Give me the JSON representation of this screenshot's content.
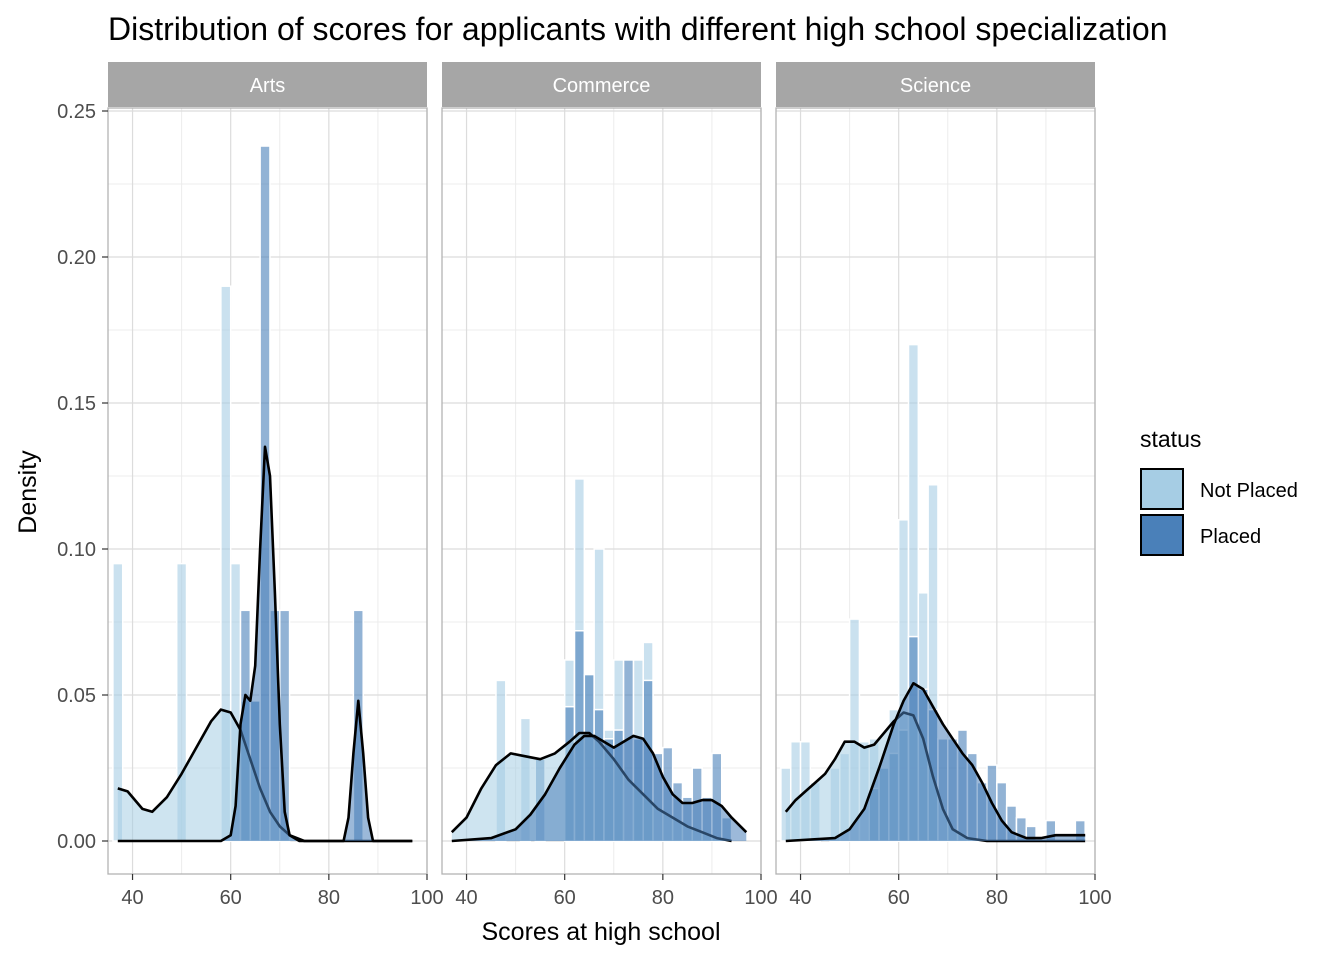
{
  "chart_data": {
    "type": "histogram-density-faceted",
    "title": "Distribution of scores for applicants with different high school specialization",
    "xlabel": "Scores at high school",
    "ylabel": "Density",
    "xlim": [
      35,
      100
    ],
    "ylim": [
      0,
      0.25
    ],
    "x_ticks": [
      40,
      60,
      80,
      100
    ],
    "x_tick_labels": [
      "40",
      "60",
      "80",
      "100"
    ],
    "y_ticks": [
      0,
      0.05,
      0.1,
      0.15,
      0.2,
      0.25
    ],
    "y_tick_labels": [
      "0.00",
      "0.05",
      "0.10",
      "0.15",
      "0.20",
      "0.25"
    ],
    "grid": true,
    "bin_width": 2,
    "legend": {
      "title": "status",
      "placement": "right",
      "entries": [
        {
          "label": "Not Placed",
          "color": "#a6cde4"
        },
        {
          "label": "Placed",
          "color": "#4a80b9"
        }
      ]
    },
    "colors": {
      "not_placed": "#a6cde4",
      "placed": "#4a80b9",
      "density_line": "#000000",
      "strip_bg": "#a6a6a6"
    },
    "facets": [
      {
        "name": "Arts",
        "histogram": {
          "not_placed": [
            [
              37,
              0.095
            ],
            [
              50,
              0.095
            ],
            [
              59,
              0.19
            ],
            [
              61,
              0.095
            ],
            [
              63,
              0.048
            ],
            [
              65,
              0.048
            ]
          ],
          "placed": [
            [
              63,
              0.079
            ],
            [
              65,
              0.048
            ],
            [
              67,
              0.238
            ],
            [
              69,
              0.079
            ],
            [
              71,
              0.079
            ],
            [
              86,
              0.079
            ]
          ]
        },
        "density": {
          "not_placed": [
            [
              37,
              0.018
            ],
            [
              39,
              0.017
            ],
            [
              42,
              0.011
            ],
            [
              44,
              0.01
            ],
            [
              47,
              0.015
            ],
            [
              50,
              0.023
            ],
            [
              53,
              0.032
            ],
            [
              56,
              0.041
            ],
            [
              58,
              0.045
            ],
            [
              60,
              0.044
            ],
            [
              62,
              0.038
            ],
            [
              64,
              0.028
            ],
            [
              66,
              0.018
            ],
            [
              68,
              0.01
            ],
            [
              70,
              0.005
            ],
            [
              72,
              0.002
            ],
            [
              75,
              0.0
            ],
            [
              97,
              0.0
            ]
          ],
          "placed": [
            [
              37,
              0.0
            ],
            [
              58,
              0.0
            ],
            [
              60,
              0.002
            ],
            [
              61,
              0.012
            ],
            [
              62,
              0.04
            ],
            [
              63,
              0.05
            ],
            [
              64,
              0.048
            ],
            [
              65,
              0.06
            ],
            [
              66,
              0.1
            ],
            [
              67,
              0.135
            ],
            [
              68,
              0.125
            ],
            [
              69,
              0.085
            ],
            [
              70,
              0.04
            ],
            [
              71,
              0.01
            ],
            [
              72,
              0.002
            ],
            [
              74,
              0.0
            ],
            [
              83,
              0.0
            ],
            [
              84,
              0.008
            ],
            [
              85,
              0.03
            ],
            [
              86,
              0.048
            ],
            [
              87,
              0.03
            ],
            [
              88,
              0.008
            ],
            [
              89,
              0.0
            ],
            [
              97,
              0.0
            ]
          ]
        }
      },
      {
        "name": "Commerce",
        "histogram": {
          "not_placed": [
            [
              47,
              0.055
            ],
            [
              52,
              0.042
            ],
            [
              61,
              0.062
            ],
            [
              63,
              0.124
            ],
            [
              65,
              0.057
            ],
            [
              67,
              0.1
            ],
            [
              69,
              0.038
            ],
            [
              71,
              0.062
            ],
            [
              75,
              0.062
            ],
            [
              77,
              0.068
            ]
          ],
          "placed": [
            [
              55,
              0.028
            ],
            [
              61,
              0.046
            ],
            [
              63,
              0.072
            ],
            [
              65,
              0.057
            ],
            [
              67,
              0.045
            ],
            [
              69,
              0.035
            ],
            [
              71,
              0.038
            ],
            [
              73,
              0.062
            ],
            [
              75,
              0.035
            ],
            [
              77,
              0.055
            ],
            [
              79,
              0.03
            ],
            [
              81,
              0.032
            ],
            [
              83,
              0.02
            ],
            [
              85,
              0.015
            ],
            [
              87,
              0.025
            ],
            [
              89,
              0.015
            ],
            [
              91,
              0.03
            ],
            [
              93,
              0.008
            ]
          ]
        },
        "density": {
          "not_placed": [
            [
              37,
              0.003
            ],
            [
              40,
              0.008
            ],
            [
              43,
              0.018
            ],
            [
              46,
              0.026
            ],
            [
              49,
              0.03
            ],
            [
              52,
              0.029
            ],
            [
              55,
              0.028
            ],
            [
              58,
              0.03
            ],
            [
              61,
              0.034
            ],
            [
              63,
              0.037
            ],
            [
              65,
              0.037
            ],
            [
              67,
              0.034
            ],
            [
              70,
              0.028
            ],
            [
              73,
              0.021
            ],
            [
              76,
              0.016
            ],
            [
              79,
              0.011
            ],
            [
              82,
              0.008
            ],
            [
              85,
              0.005
            ],
            [
              88,
              0.003
            ],
            [
              91,
              0.001
            ],
            [
              94,
              0.0
            ]
          ],
          "placed": [
            [
              37,
              0.0
            ],
            [
              45,
              0.001
            ],
            [
              50,
              0.004
            ],
            [
              53,
              0.009
            ],
            [
              56,
              0.016
            ],
            [
              59,
              0.025
            ],
            [
              62,
              0.033
            ],
            [
              64,
              0.036
            ],
            [
              66,
              0.036
            ],
            [
              68,
              0.034
            ],
            [
              70,
              0.032
            ],
            [
              72,
              0.034
            ],
            [
              74,
              0.036
            ],
            [
              76,
              0.035
            ],
            [
              78,
              0.03
            ],
            [
              80,
              0.022
            ],
            [
              82,
              0.016
            ],
            [
              84,
              0.013
            ],
            [
              86,
              0.013
            ],
            [
              88,
              0.014
            ],
            [
              90,
              0.014
            ],
            [
              92,
              0.012
            ],
            [
              94,
              0.008
            ],
            [
              97,
              0.003
            ]
          ]
        }
      },
      {
        "name": "Science",
        "histogram": {
          "not_placed": [
            [
              37,
              0.025
            ],
            [
              39,
              0.034
            ],
            [
              41,
              0.034
            ],
            [
              43,
              0.02
            ],
            [
              47,
              0.025
            ],
            [
              49,
              0.03
            ],
            [
              51,
              0.076
            ],
            [
              53,
              0.034
            ],
            [
              55,
              0.035
            ],
            [
              57,
              0.025
            ],
            [
              59,
              0.045
            ],
            [
              61,
              0.11
            ],
            [
              63,
              0.17
            ],
            [
              65,
              0.085
            ],
            [
              67,
              0.122
            ]
          ],
          "placed": [
            [
              55,
              0.018
            ],
            [
              57,
              0.025
            ],
            [
              59,
              0.03
            ],
            [
              61,
              0.038
            ],
            [
              63,
              0.07
            ],
            [
              65,
              0.052
            ],
            [
              67,
              0.045
            ],
            [
              69,
              0.035
            ],
            [
              71,
              0.035
            ],
            [
              73,
              0.038
            ],
            [
              75,
              0.03
            ],
            [
              77,
              0.02
            ],
            [
              79,
              0.026
            ],
            [
              81,
              0.02
            ],
            [
              83,
              0.012
            ],
            [
              85,
              0.008
            ],
            [
              87,
              0.005
            ],
            [
              91,
              0.007
            ],
            [
              97,
              0.007
            ]
          ]
        },
        "density": {
          "not_placed": [
            [
              37,
              0.01
            ],
            [
              39,
              0.014
            ],
            [
              41,
              0.017
            ],
            [
              43,
              0.02
            ],
            [
              45,
              0.023
            ],
            [
              47,
              0.028
            ],
            [
              49,
              0.034
            ],
            [
              51,
              0.034
            ],
            [
              53,
              0.032
            ],
            [
              55,
              0.033
            ],
            [
              57,
              0.037
            ],
            [
              59,
              0.041
            ],
            [
              61,
              0.044
            ],
            [
              63,
              0.043
            ],
            [
              65,
              0.035
            ],
            [
              67,
              0.022
            ],
            [
              69,
              0.011
            ],
            [
              71,
              0.004
            ],
            [
              74,
              0.001
            ],
            [
              78,
              0.0
            ],
            [
              98,
              0.0
            ]
          ],
          "placed": [
            [
              37,
              0.0
            ],
            [
              47,
              0.001
            ],
            [
              50,
              0.004
            ],
            [
              53,
              0.011
            ],
            [
              56,
              0.025
            ],
            [
              59,
              0.04
            ],
            [
              61,
              0.048
            ],
            [
              63,
              0.054
            ],
            [
              65,
              0.052
            ],
            [
              67,
              0.046
            ],
            [
              69,
              0.04
            ],
            [
              71,
              0.035
            ],
            [
              73,
              0.03
            ],
            [
              75,
              0.026
            ],
            [
              77,
              0.02
            ],
            [
              79,
              0.013
            ],
            [
              81,
              0.007
            ],
            [
              83,
              0.003
            ],
            [
              86,
              0.001
            ],
            [
              89,
              0.001
            ],
            [
              92,
              0.002
            ],
            [
              95,
              0.002
            ],
            [
              98,
              0.002
            ]
          ]
        }
      }
    ]
  }
}
